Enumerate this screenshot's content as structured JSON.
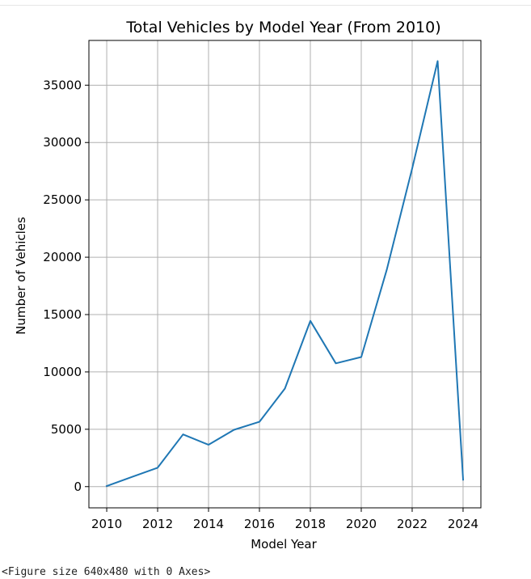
{
  "chart_data": {
    "type": "line",
    "title": "Total Vehicles by Model Year (From 2010)",
    "xlabel": "Model Year",
    "ylabel": "Number of Vehicles",
    "x": [
      2010,
      2011,
      2012,
      2013,
      2014,
      2015,
      2016,
      2017,
      2018,
      2019,
      2020,
      2021,
      2022,
      2023,
      2024
    ],
    "series": [
      {
        "values": [
          50,
          850,
          1650,
          4550,
          3650,
          4950,
          5650,
          8550,
          14450,
          10750,
          11300,
          18900,
          27750,
          37100,
          600
        ],
        "color": "#1f77b4"
      }
    ],
    "xlim": [
      2009.3,
      2024.7
    ],
    "ylim": [
      -1850,
      38900
    ],
    "xticks": [
      2010,
      2012,
      2014,
      2016,
      2018,
      2020,
      2022,
      2024
    ],
    "yticks": [
      0,
      5000,
      10000,
      15000,
      20000,
      25000,
      30000,
      35000
    ],
    "grid": true,
    "legend": "none"
  },
  "footer": {
    "text": "<Figure size 640x480 with 0 Axes>"
  }
}
